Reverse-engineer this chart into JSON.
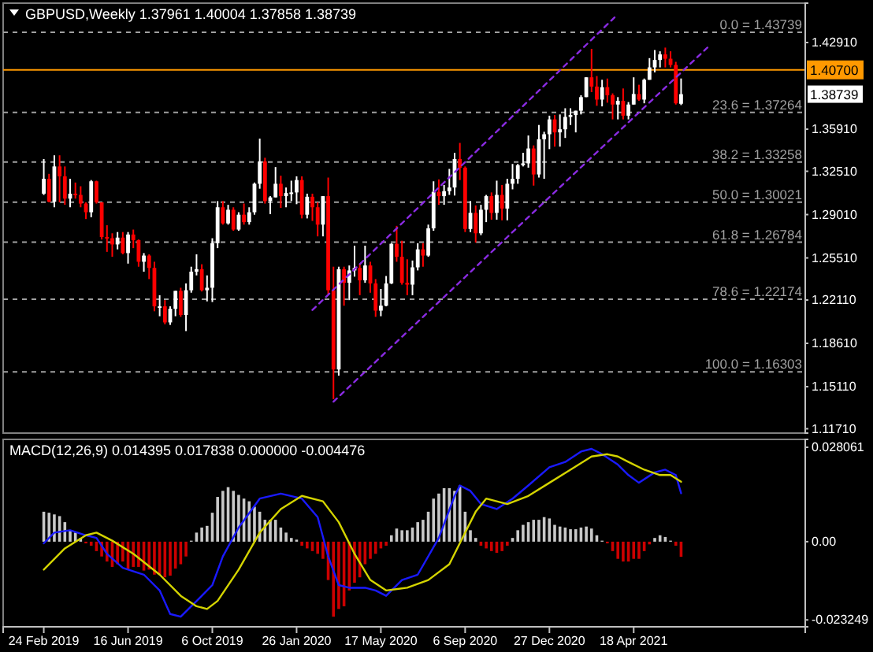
{
  "chart_data": [
    {
      "type": "candlestick",
      "title": "GBPUSD,Weekly 1.37961 1.40004 1.37858 1.38739",
      "x": [
        "2019-02-24",
        "2019-03-03",
        "2019-03-10",
        "2019-03-17",
        "2019-03-24",
        "2019-03-31",
        "2019-04-07",
        "2019-04-14",
        "2019-04-21",
        "2019-04-28",
        "2019-05-05",
        "2019-05-12",
        "2019-05-19",
        "2019-05-26",
        "2019-06-02",
        "2019-06-09",
        "2019-06-16",
        "2019-06-23",
        "2019-06-30",
        "2019-07-07",
        "2019-07-14",
        "2019-07-21",
        "2019-07-28",
        "2019-08-04",
        "2019-08-11",
        "2019-08-18",
        "2019-08-25",
        "2019-09-01",
        "2019-09-08",
        "2019-09-15",
        "2019-09-22",
        "2019-09-29",
        "2019-10-06",
        "2019-10-13",
        "2019-10-20",
        "2019-10-27",
        "2019-11-03",
        "2019-11-10",
        "2019-11-17",
        "2019-11-24",
        "2019-12-01",
        "2019-12-08",
        "2019-12-15",
        "2019-12-22",
        "2019-12-29",
        "2020-01-05",
        "2020-01-12",
        "2020-01-19",
        "2020-01-26",
        "2020-02-02",
        "2020-02-09",
        "2020-02-16",
        "2020-02-23",
        "2020-03-01",
        "2020-03-08",
        "2020-03-15",
        "2020-03-22",
        "2020-03-29",
        "2020-04-05",
        "2020-04-12",
        "2020-04-19",
        "2020-04-26",
        "2020-05-03",
        "2020-05-10",
        "2020-05-17",
        "2020-05-24",
        "2020-05-31",
        "2020-06-07",
        "2020-06-14",
        "2020-06-21",
        "2020-06-28",
        "2020-07-05",
        "2020-07-12",
        "2020-07-19",
        "2020-07-26",
        "2020-08-02",
        "2020-08-09",
        "2020-08-16",
        "2020-08-23",
        "2020-08-30",
        "2020-09-06",
        "2020-09-13",
        "2020-09-20",
        "2020-09-27",
        "2020-10-04",
        "2020-10-11",
        "2020-10-18",
        "2020-10-25",
        "2020-11-01",
        "2020-11-08",
        "2020-11-15",
        "2020-11-22",
        "2020-11-29",
        "2020-12-06",
        "2020-12-13",
        "2020-12-20",
        "2020-12-27",
        "2021-01-03",
        "2021-01-10",
        "2021-01-17",
        "2021-01-24",
        "2021-01-31",
        "2021-02-07",
        "2021-02-14",
        "2021-02-21",
        "2021-02-28",
        "2021-03-07",
        "2021-03-14",
        "2021-03-21",
        "2021-03-28",
        "2021-04-04",
        "2021-04-11",
        "2021-04-18",
        "2021-04-25",
        "2021-05-02",
        "2021-05-09",
        "2021-05-16",
        "2021-05-23",
        "2021-05-30",
        "2021-06-06",
        "2021-06-13",
        "2021-06-20"
      ],
      "ohlc": [
        [
          1.307,
          1.335,
          1.306,
          1.319
        ],
        [
          1.319,
          1.323,
          1.3,
          1.3005
        ],
        [
          1.3005,
          1.338,
          1.296,
          1.329
        ],
        [
          1.329,
          1.338,
          1.3,
          1.321
        ],
        [
          1.321,
          1.329,
          1.298,
          1.303
        ],
        [
          1.303,
          1.319,
          1.296,
          1.307
        ],
        [
          1.307,
          1.316,
          1.303,
          1.306
        ],
        [
          1.306,
          1.313,
          1.296,
          1.299
        ],
        [
          1.299,
          1.3,
          1.2865,
          1.292
        ],
        [
          1.292,
          1.318,
          1.288,
          1.317
        ],
        [
          1.317,
          1.3175,
          1.299,
          1.3
        ],
        [
          1.3,
          1.3,
          1.27,
          1.272
        ],
        [
          1.272,
          1.2815,
          1.26,
          1.271
        ],
        [
          1.271,
          1.275,
          1.256,
          1.266
        ],
        [
          1.266,
          1.276,
          1.262,
          1.2715
        ],
        [
          1.2715,
          1.276,
          1.258,
          1.259
        ],
        [
          1.259,
          1.276,
          1.2505,
          1.274
        ],
        [
          1.274,
          1.278,
          1.263,
          1.2695
        ],
        [
          1.2695,
          1.27,
          1.248,
          1.252
        ],
        [
          1.252,
          1.259,
          1.244,
          1.257
        ],
        [
          1.257,
          1.258,
          1.238,
          1.247
        ],
        [
          1.247,
          1.252,
          1.212,
          1.216
        ],
        [
          1.216,
          1.225,
          1.208,
          1.216
        ],
        [
          1.216,
          1.221,
          1.2015,
          1.203
        ],
        [
          1.203,
          1.216,
          1.201,
          1.214
        ],
        [
          1.214,
          1.2285,
          1.208,
          1.2285
        ],
        [
          1.2285,
          1.231,
          1.2075,
          1.209
        ],
        [
          1.209,
          1.2345,
          1.196,
          1.229
        ],
        [
          1.229,
          1.248,
          1.227,
          1.244
        ],
        [
          1.244,
          1.258,
          1.241,
          1.246
        ],
        [
          1.246,
          1.25,
          1.228,
          1.229
        ],
        [
          1.229,
          1.241,
          1.22,
          1.231
        ],
        [
          1.231,
          1.271,
          1.2195,
          1.267
        ],
        [
          1.267,
          1.301,
          1.263,
          1.296
        ],
        [
          1.296,
          1.301,
          1.282,
          1.283
        ],
        [
          1.283,
          1.298,
          1.282,
          1.294
        ],
        [
          1.294,
          1.296,
          1.277,
          1.278
        ],
        [
          1.278,
          1.292,
          1.277,
          1.29
        ],
        [
          1.29,
          1.299,
          1.282,
          1.284
        ],
        [
          1.284,
          1.296,
          1.282,
          1.292
        ],
        [
          1.292,
          1.316,
          1.29,
          1.315
        ],
        [
          1.315,
          1.3515,
          1.311,
          1.333
        ],
        [
          1.333,
          1.336,
          1.299,
          1.301
        ],
        [
          1.301,
          1.305,
          1.2905,
          1.304
        ],
        [
          1.304,
          1.3285,
          1.304,
          1.315
        ],
        [
          1.315,
          1.3215,
          1.2955,
          1.305
        ],
        [
          1.305,
          1.312,
          1.296,
          1.3075
        ],
        [
          1.3075,
          1.3175,
          1.301,
          1.308
        ],
        [
          1.308,
          1.321,
          1.2985,
          1.318
        ],
        [
          1.318,
          1.321,
          1.287,
          1.29
        ],
        [
          1.29,
          1.307,
          1.287,
          1.3045
        ],
        [
          1.3045,
          1.307,
          1.285,
          1.296
        ],
        [
          1.296,
          1.3,
          1.2725,
          1.282
        ],
        [
          1.282,
          1.305,
          1.2725,
          1.305
        ],
        [
          1.305,
          1.32,
          1.226,
          1.229
        ],
        [
          1.229,
          1.248,
          1.141,
          1.165
        ],
        [
          1.165,
          1.248,
          1.16,
          1.246
        ],
        [
          1.246,
          1.248,
          1.2165,
          1.235
        ],
        [
          1.235,
          1.249,
          1.221,
          1.245
        ],
        [
          1.245,
          1.265,
          1.24,
          1.247
        ],
        [
          1.247,
          1.25,
          1.225,
          1.237
        ],
        [
          1.237,
          1.265,
          1.235,
          1.249
        ],
        [
          1.249,
          1.252,
          1.227,
          1.2345
        ],
        [
          1.2345,
          1.238,
          1.2075,
          1.2125
        ],
        [
          1.2125,
          1.23,
          1.208,
          1.2165
        ],
        [
          1.2165,
          1.2405,
          1.216,
          1.2345
        ],
        [
          1.2345,
          1.267,
          1.234,
          1.2665
        ],
        [
          1.2665,
          1.281,
          1.252,
          1.256
        ],
        [
          1.256,
          1.269,
          1.2335,
          1.235
        ],
        [
          1.235,
          1.254,
          1.225,
          1.2335
        ],
        [
          1.2335,
          1.253,
          1.225,
          1.2475
        ],
        [
          1.2475,
          1.267,
          1.245,
          1.262
        ],
        [
          1.262,
          1.267,
          1.248,
          1.257
        ],
        [
          1.257,
          1.282,
          1.256,
          1.279
        ],
        [
          1.279,
          1.317,
          1.277,
          1.3085
        ],
        [
          1.3085,
          1.3185,
          1.298,
          1.305
        ],
        [
          1.305,
          1.314,
          1.298,
          1.309
        ],
        [
          1.309,
          1.327,
          1.306,
          1.312
        ],
        [
          1.312,
          1.34,
          1.3055,
          1.335
        ],
        [
          1.335,
          1.348,
          1.318,
          1.328
        ],
        [
          1.328,
          1.329,
          1.276,
          1.2785
        ],
        [
          1.2785,
          1.301,
          1.276,
          1.2915
        ],
        [
          1.2915,
          1.2975,
          1.2675,
          1.275
        ],
        [
          1.275,
          1.298,
          1.2735,
          1.294
        ],
        [
          1.294,
          1.306,
          1.284,
          1.305
        ],
        [
          1.305,
          1.308,
          1.286,
          1.2915
        ],
        [
          1.2915,
          1.3175,
          1.286,
          1.306
        ],
        [
          1.306,
          1.314,
          1.2855,
          1.295
        ],
        [
          1.295,
          1.319,
          1.2855,
          1.315
        ],
        [
          1.315,
          1.331,
          1.3105,
          1.319
        ],
        [
          1.319,
          1.331,
          1.315,
          1.33
        ],
        [
          1.33,
          1.34,
          1.329,
          1.3315
        ],
        [
          1.3315,
          1.354,
          1.328,
          1.3435
        ],
        [
          1.3435,
          1.346,
          1.3135,
          1.3225
        ],
        [
          1.3225,
          1.3625,
          1.32,
          1.351
        ],
        [
          1.351,
          1.357,
          1.319,
          1.355
        ],
        [
          1.355,
          1.37,
          1.343,
          1.367
        ],
        [
          1.367,
          1.3705,
          1.345,
          1.3565
        ],
        [
          1.3565,
          1.371,
          1.345,
          1.359
        ],
        [
          1.359,
          1.376,
          1.352,
          1.369
        ],
        [
          1.369,
          1.376,
          1.3625,
          1.3705
        ],
        [
          1.3705,
          1.374,
          1.3565,
          1.374
        ],
        [
          1.374,
          1.3865,
          1.371,
          1.385
        ],
        [
          1.385,
          1.401,
          1.385,
          1.401
        ],
        [
          1.401,
          1.424,
          1.389,
          1.3935
        ],
        [
          1.3935,
          1.402,
          1.378,
          1.383
        ],
        [
          1.383,
          1.399,
          1.3775,
          1.393
        ],
        [
          1.393,
          1.4,
          1.3805,
          1.3865
        ],
        [
          1.3865,
          1.388,
          1.367,
          1.379
        ],
        [
          1.379,
          1.385,
          1.367,
          1.382
        ],
        [
          1.382,
          1.392,
          1.367,
          1.37
        ],
        [
          1.37,
          1.381,
          1.367,
          1.379
        ],
        [
          1.379,
          1.401,
          1.379,
          1.3875
        ],
        [
          1.3875,
          1.395,
          1.382,
          1.383
        ],
        [
          1.383,
          1.4,
          1.38,
          1.399
        ],
        [
          1.399,
          1.4165,
          1.399,
          1.409
        ],
        [
          1.409,
          1.423,
          1.405,
          1.415
        ],
        [
          1.415,
          1.422,
          1.409,
          1.4195
        ],
        [
          1.4195,
          1.425,
          1.409,
          1.416
        ],
        [
          1.416,
          1.422,
          1.409,
          1.411
        ],
        [
          1.411,
          1.4135,
          1.379,
          1.38
        ],
        [
          1.37961,
          1.40004,
          1.37858,
          1.38739
        ]
      ],
      "xlim": [
        "2019-01-01",
        "2021-12-02"
      ],
      "ylim": [
        1.1136,
        1.4609
      ],
      "yticks": [
        {
          "value": 1.1171,
          "label": "1.11710"
        },
        {
          "value": 1.1511,
          "label": "1.15110"
        },
        {
          "value": 1.1861,
          "label": "1.18610"
        },
        {
          "value": 1.2211,
          "label": "1.22110"
        },
        {
          "value": 1.2551,
          "label": "1.25510"
        },
        {
          "value": 1.2901,
          "label": "1.29010"
        },
        {
          "value": 1.3251,
          "label": "1.32510"
        },
        {
          "value": 1.3591,
          "label": "1.35910"
        },
        {
          "value": 1.3941,
          "label": null
        },
        {
          "value": 1.4291,
          "label": "1.42910"
        }
      ],
      "tick_labels": "y",
      "series": [
        {
          "type": "line",
          "color": "#8a2be2",
          "line_style": "dashed",
          "x": [
            "2020-03-15",
            "2021-07-25"
          ],
          "values": [
            1.139,
            1.425
          ]
        },
        {
          "type": "line",
          "color": "#8a2be2",
          "line_style": "dashed",
          "x": [
            "2020-02-16",
            "2021-03-28"
          ],
          "values": [
            1.213,
            1.452
          ]
        }
      ],
      "ref_lines": [
        {
          "axis": "y",
          "value": 1.43739,
          "label": "0.0 = 1.43739",
          "color": "#a0a0a0",
          "line_style": "dashed"
        },
        {
          "axis": "y",
          "value": 1.37264,
          "label": "23.6 = 1.37264",
          "color": "#a0a0a0",
          "line_style": "dashed"
        },
        {
          "axis": "y",
          "value": 1.33258,
          "label": "38.2 = 1.33258",
          "color": "#a0a0a0",
          "line_style": "dashed"
        },
        {
          "axis": "y",
          "value": 1.30021,
          "label": "50.0 = 1.30021",
          "color": "#a0a0a0",
          "line_style": "dashed"
        },
        {
          "axis": "y",
          "value": 1.26784,
          "label": "61.8 = 1.26784",
          "color": "#a0a0a0",
          "line_style": "dashed"
        },
        {
          "axis": "y",
          "value": 1.22174,
          "label": "78.6 = 1.22174",
          "color": "#a0a0a0",
          "line_style": "dashed"
        },
        {
          "axis": "y",
          "value": 1.16303,
          "label": "100.0 = 1.16303",
          "color": "#a0a0a0",
          "line_style": "dashed"
        },
        {
          "axis": "y",
          "value": 1.407,
          "label": "1.40700",
          "color": "#ff9900",
          "line_style": "solid"
        }
      ],
      "annotations": [
        {
          "text": "1.38739",
          "y": 1.38739
        }
      ]
    },
    {
      "type": "bar",
      "title": "MACD(12,26,9) 0.014395 0.017838 0.000000 -0.004476",
      "x": [
        "2019-02-24",
        "2019-03-03",
        "2019-03-10",
        "2019-03-17",
        "2019-03-24",
        "2019-03-31",
        "2019-04-07",
        "2019-04-14",
        "2019-04-21",
        "2019-04-28",
        "2019-05-05",
        "2019-05-12",
        "2019-05-19",
        "2019-05-26",
        "2019-06-02",
        "2019-06-09",
        "2019-06-16",
        "2019-06-23",
        "2019-06-30",
        "2019-07-07",
        "2019-07-14",
        "2019-07-21",
        "2019-07-28",
        "2019-08-04",
        "2019-08-11",
        "2019-08-18",
        "2019-08-25",
        "2019-09-01",
        "2019-09-08",
        "2019-09-15",
        "2019-09-22",
        "2019-09-29",
        "2019-10-06",
        "2019-10-13",
        "2019-10-20",
        "2019-10-27",
        "2019-11-03",
        "2019-11-10",
        "2019-11-17",
        "2019-11-24",
        "2019-12-01",
        "2019-12-08",
        "2019-12-15",
        "2019-12-22",
        "2019-12-29",
        "2020-01-05",
        "2020-01-12",
        "2020-01-19",
        "2020-01-26",
        "2020-02-02",
        "2020-02-09",
        "2020-02-16",
        "2020-02-23",
        "2020-03-01",
        "2020-03-08",
        "2020-03-15",
        "2020-03-22",
        "2020-03-29",
        "2020-04-05",
        "2020-04-12",
        "2020-04-19",
        "2020-04-26",
        "2020-05-03",
        "2020-05-10",
        "2020-05-17",
        "2020-05-24",
        "2020-05-31",
        "2020-06-07",
        "2020-06-14",
        "2020-06-21",
        "2020-06-28",
        "2020-07-05",
        "2020-07-12",
        "2020-07-19",
        "2020-07-26",
        "2020-08-02",
        "2020-08-09",
        "2020-08-16",
        "2020-08-23",
        "2020-08-30",
        "2020-09-06",
        "2020-09-13",
        "2020-09-20",
        "2020-09-27",
        "2020-10-04",
        "2020-10-11",
        "2020-10-18",
        "2020-10-25",
        "2020-11-01",
        "2020-11-08",
        "2020-11-15",
        "2020-11-22",
        "2020-11-29",
        "2020-12-06",
        "2020-12-13",
        "2020-12-20",
        "2020-12-27",
        "2021-01-03",
        "2021-01-10",
        "2021-01-17",
        "2021-01-24",
        "2021-01-31",
        "2021-02-07",
        "2021-02-14",
        "2021-02-21",
        "2021-02-28",
        "2021-03-07",
        "2021-03-14",
        "2021-03-21",
        "2021-03-28",
        "2021-04-04",
        "2021-04-11",
        "2021-04-18",
        "2021-04-25",
        "2021-05-02",
        "2021-05-09",
        "2021-05-16",
        "2021-05-23",
        "2021-05-30",
        "2021-06-06",
        "2021-06-13",
        "2021-06-20"
      ],
      "xlim": [
        "2019-01-01",
        "2021-12-02"
      ],
      "ylim": [
        -0.0253,
        0.0304
      ],
      "yticks": [
        -0.023249,
        {
          "value": 0,
          "label": "0.00"
        },
        0.028061
      ],
      "xticks": [
        {
          "value": "2019-02-24",
          "label": "24 Feb 2019"
        },
        {
          "value": "2019-06-16",
          "label": "16 Jun 2019"
        },
        {
          "value": "2019-10-06",
          "label": "6 Oct 2019"
        },
        {
          "value": "2020-01-26",
          "label": "26 Jan 2020"
        },
        {
          "value": "2020-05-17",
          "label": "17 May 2020"
        },
        {
          "value": "2020-09-06",
          "label": "6 Sep 2020"
        },
        {
          "value": "2020-12-27",
          "label": "27 Dec 2020"
        },
        {
          "value": "2021-04-18",
          "label": "18 Apr 2021"
        }
      ],
      "series": [
        {
          "type": "bar",
          "colors": [
            "#c8c8c8",
            "#c8c8c8",
            "#c8c8c8",
            "#c8c8c8",
            "#c8c8c8",
            "#c8c8c8",
            "#c8c8c8",
            "#c8c8c8",
            "#cc0000",
            "#cc0000",
            "#cc0000",
            "#cc0000",
            "#cc0000",
            "#cc0000",
            "#cc0000",
            "#cc0000",
            "#cc0000",
            "#cc0000",
            "#cc0000",
            "#cc0000",
            "#cc0000",
            "#cc0000",
            "#cc0000",
            "#cc0000",
            "#cc0000",
            "#cc0000",
            "#cc0000",
            "#cc0000",
            "#c8c8c8",
            "#c8c8c8",
            "#c8c8c8",
            "#c8c8c8",
            "#c8c8c8",
            "#c8c8c8",
            "#c8c8c8",
            "#c8c8c8",
            "#c8c8c8",
            "#c8c8c8",
            "#c8c8c8",
            "#c8c8c8",
            "#c8c8c8",
            "#c8c8c8",
            "#c8c8c8",
            "#c8c8c8",
            "#c8c8c8",
            "#c8c8c8",
            "#c8c8c8",
            "#c8c8c8",
            "#c8c8c8",
            "#cc0000",
            "#cc0000",
            "#cc0000",
            "#cc0000",
            "#cc0000",
            "#cc0000",
            "#cc0000",
            "#cc0000",
            "#cc0000",
            "#cc0000",
            "#cc0000",
            "#cc0000",
            "#cc0000",
            "#cc0000",
            "#cc0000",
            "#cc0000",
            "#cc0000",
            "#c8c8c8",
            "#c8c8c8",
            "#c8c8c8",
            "#c8c8c8",
            "#c8c8c8",
            "#c8c8c8",
            "#c8c8c8",
            "#c8c8c8",
            "#c8c8c8",
            "#c8c8c8",
            "#c8c8c8",
            "#c8c8c8",
            "#c8c8c8",
            "#c8c8c8",
            "#c8c8c8",
            "#c8c8c8",
            "#c8c8c8",
            "#cc0000",
            "#cc0000",
            "#cc0000",
            "#cc0000",
            "#cc0000",
            "#cc0000",
            "#c8c8c8",
            "#c8c8c8",
            "#c8c8c8",
            "#c8c8c8",
            "#c8c8c8",
            "#c8c8c8",
            "#c8c8c8",
            "#c8c8c8",
            "#c8c8c8",
            "#c8c8c8",
            "#c8c8c8",
            "#c8c8c8",
            "#c8c8c8",
            "#c8c8c8",
            "#c8c8c8",
            "#c8c8c8",
            "#c8c8c8",
            "#c8c8c8",
            "#cc0000",
            "#cc0000",
            "#cc0000",
            "#cc0000",
            "#cc0000",
            "#cc0000",
            "#cc0000",
            "#cc0000",
            "#cc0000",
            "#c8c8c8",
            "#c8c8c8",
            "#c8c8c8",
            "#c8c8c8",
            "#cc0000",
            "#cc0000"
          ],
          "values": [
            0.0089,
            0.0086,
            0.0081,
            0.0076,
            0.0058,
            0.0034,
            0.0027,
            0.0011,
            -0.0005,
            -0.0012,
            -0.0028,
            -0.0044,
            -0.0059,
            -0.0075,
            -0.0067,
            -0.0059,
            -0.0083,
            -0.0075,
            -0.0075,
            -0.0086,
            -0.0083,
            -0.0098,
            -0.0098,
            -0.0106,
            -0.0101,
            -0.008,
            -0.0067,
            -0.0044,
            0.0003,
            0.0027,
            0.0042,
            0.0047,
            0.0086,
            0.0133,
            0.0151,
            0.0162,
            0.0151,
            0.0139,
            0.0128,
            0.012,
            0.0104,
            0.0089,
            0.0065,
            0.0065,
            0.0065,
            0.0042,
            0.0027,
            0.0011,
            0.0006,
            -0.0012,
            -0.002,
            -0.0028,
            -0.0036,
            -0.0051,
            -0.0114,
            -0.0223,
            -0.02,
            -0.0192,
            -0.0145,
            -0.0122,
            -0.0106,
            -0.0067,
            -0.0051,
            -0.0036,
            -0.002,
            -0.0012,
            0.0019,
            0.0039,
            0.0034,
            0.0034,
            0.0042,
            0.0058,
            0.0065,
            0.0089,
            0.0128,
            0.0143,
            0.0159,
            0.0159,
            0.0151,
            0.0167,
            0.0089,
            0.0034,
            0.0011,
            -0.0012,
            -0.002,
            -0.0028,
            -0.0033,
            -0.0028,
            -0.0012,
            0.0011,
            0.0034,
            0.005,
            0.0058,
            0.0065,
            0.0065,
            0.0073,
            0.0069,
            0.005,
            0.0045,
            0.0042,
            0.0037,
            0.0037,
            0.0042,
            0.0045,
            0.0039,
            0.0019,
            0.0003,
            -0.0005,
            -0.0028,
            -0.0051,
            -0.0059,
            -0.0059,
            -0.0051,
            -0.0051,
            -0.0028,
            -0.0008,
            0.0011,
            0.0019,
            0.0014,
            0.0003,
            -0.0012,
            -0.0045
          ]
        },
        {
          "type": "line",
          "color": "#1a1aff",
          "x": [
            "2019-02-24",
            "2019-03-10",
            "2019-03-31",
            "2019-04-21",
            "2019-05-05",
            "2019-05-19",
            "2019-06-09",
            "2019-07-07",
            "2019-07-28",
            "2019-08-11",
            "2019-08-25",
            "2019-09-08",
            "2019-09-22",
            "2019-10-06",
            "2019-10-20",
            "2019-11-10",
            "2019-12-08",
            "2020-01-05",
            "2020-02-02",
            "2020-02-23",
            "2020-03-08",
            "2020-03-22",
            "2020-04-05",
            "2020-04-26",
            "2020-05-10",
            "2020-05-24",
            "2020-06-14",
            "2020-07-05",
            "2020-08-02",
            "2020-08-23",
            "2020-08-30",
            "2020-09-13",
            "2020-09-27",
            "2020-10-18",
            "2020-11-08",
            "2020-11-29",
            "2020-12-27",
            "2021-01-17",
            "2021-02-07",
            "2021-02-21",
            "2021-03-07",
            "2021-03-28",
            "2021-04-11",
            "2021-04-25",
            "2021-05-16",
            "2021-05-30",
            "2021-06-13",
            "2021-06-20"
          ],
          "values": [
            -0.0005,
            0.0027,
            0.0034,
            0.0019,
            0.0011,
            -0.0036,
            -0.0078,
            -0.0098,
            -0.0145,
            -0.0215,
            -0.0223,
            -0.0192,
            -0.0161,
            -0.0129,
            -0.0044,
            0.0042,
            0.0128,
            0.0143,
            0.0128,
            0.0073,
            -0.0044,
            -0.0129,
            -0.0137,
            -0.0137,
            -0.0145,
            -0.0161,
            -0.0114,
            -0.0098,
            0.0011,
            0.0136,
            0.0167,
            0.0151,
            0.0112,
            0.0097,
            0.0128,
            0.0167,
            0.0221,
            0.0237,
            0.0268,
            0.0276,
            0.026,
            0.0229,
            0.0198,
            0.0175,
            0.0206,
            0.0214,
            0.0198,
            0.0144
          ]
        },
        {
          "type": "line",
          "color": "#d4d400",
          "x": [
            "2019-02-24",
            "2019-03-24",
            "2019-04-21",
            "2019-05-05",
            "2019-05-26",
            "2019-06-23",
            "2019-07-28",
            "2019-08-25",
            "2019-09-15",
            "2019-09-29",
            "2019-10-13",
            "2019-11-10",
            "2019-12-08",
            "2020-01-05",
            "2020-02-02",
            "2020-03-01",
            "2020-03-22",
            "2020-04-12",
            "2020-05-03",
            "2020-05-24",
            "2020-06-21",
            "2020-07-19",
            "2020-08-16",
            "2020-09-06",
            "2020-09-20",
            "2020-10-04",
            "2020-11-01",
            "2020-11-29",
            "2020-12-27",
            "2021-01-24",
            "2021-02-21",
            "2021-03-14",
            "2021-03-28",
            "2021-04-11",
            "2021-05-02",
            "2021-05-23",
            "2021-06-06",
            "2021-06-20"
          ],
          "values": [
            -0.0083,
            -0.002,
            0.0019,
            0.0027,
            0.0003,
            -0.0036,
            -0.0098,
            -0.0161,
            -0.0192,
            -0.02,
            -0.0176,
            -0.0083,
            0.0027,
            0.0097,
            0.0136,
            0.012,
            0.0058,
            -0.0036,
            -0.0114,
            -0.0145,
            -0.0137,
            -0.0114,
            -0.0067,
            0.0027,
            0.0089,
            0.0128,
            0.0112,
            0.0136,
            0.0175,
            0.0214,
            0.0253,
            0.026,
            0.0253,
            0.0237,
            0.0214,
            0.0198,
            0.0198,
            0.0178
          ]
        }
      ]
    }
  ]
}
